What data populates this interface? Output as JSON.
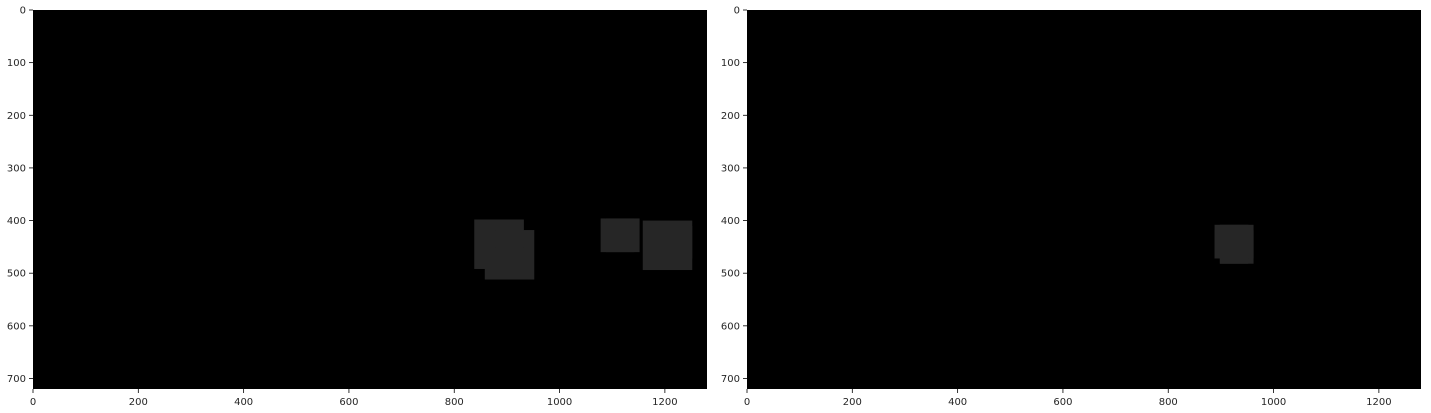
{
  "chart_data": [
    {
      "type": "heatmap",
      "title": "",
      "xlabel": "",
      "ylabel": "",
      "xlim": [
        0,
        1280
      ],
      "ylim": [
        720,
        0
      ],
      "x_ticks": [
        0,
        200,
        400,
        600,
        800,
        1000,
        1200
      ],
      "y_ticks": [
        0,
        100,
        200,
        300,
        400,
        500,
        600,
        700
      ],
      "x_tick_labels": [
        "0",
        "200",
        "400",
        "600",
        "800",
        "1000",
        "1200"
      ],
      "y_tick_labels": [
        "0",
        "100",
        "200",
        "300",
        "400",
        "500",
        "600",
        "700"
      ],
      "background_color": "#000000",
      "patches": [
        {
          "x0": 838,
          "y0": 398,
          "x1": 932,
          "y1": 492,
          "color": "#262626"
        },
        {
          "x0": 858,
          "y0": 418,
          "x1": 952,
          "y1": 512,
          "color": "#262626"
        },
        {
          "x0": 878,
          "y0": 398,
          "x1": 932,
          "y1": 452,
          "color": "#262626"
        },
        {
          "x0": 1078,
          "y0": 396,
          "x1": 1152,
          "y1": 460,
          "color": "#262626"
        },
        {
          "x0": 1158,
          "y0": 400,
          "x1": 1252,
          "y1": 494,
          "color": "#262626"
        },
        {
          "x0": 1188,
          "y0": 410,
          "x1": 1252,
          "y1": 472,
          "color": "#262626"
        },
        {
          "x0": 1088,
          "y0": 396,
          "x1": 1142,
          "y1": 460,
          "color": "#262626"
        }
      ]
    },
    {
      "type": "heatmap",
      "title": "",
      "xlabel": "",
      "ylabel": "",
      "xlim": [
        0,
        1280
      ],
      "ylim": [
        720,
        0
      ],
      "x_ticks": [
        0,
        200,
        400,
        600,
        800,
        1000,
        1200
      ],
      "y_ticks": [
        0,
        100,
        200,
        300,
        400,
        500,
        600,
        700
      ],
      "x_tick_labels": [
        "0",
        "200",
        "400",
        "600",
        "800",
        "1000",
        "1200"
      ],
      "y_tick_labels": [
        "0",
        "100",
        "200",
        "300",
        "400",
        "500",
        "600",
        "700"
      ],
      "background_color": "#000000",
      "patches": [
        {
          "x0": 888,
          "y0": 408,
          "x1": 962,
          "y1": 472,
          "color": "#262626"
        },
        {
          "x0": 898,
          "y0": 418,
          "x1": 962,
          "y1": 482,
          "color": "#262626"
        },
        {
          "x0": 898,
          "y0": 408,
          "x1": 952,
          "y1": 472,
          "color": "#262626"
        },
        {
          "x0": 908,
          "y0": 418,
          "x1": 952,
          "y1": 472,
          "color": "#262626"
        },
        {
          "x0": 898,
          "y0": 418,
          "x1": 952,
          "y1": 482,
          "color": "#262626"
        },
        {
          "x0": 888,
          "y0": 418,
          "x1": 962,
          "y1": 472,
          "color": "#262626"
        }
      ]
    }
  ]
}
